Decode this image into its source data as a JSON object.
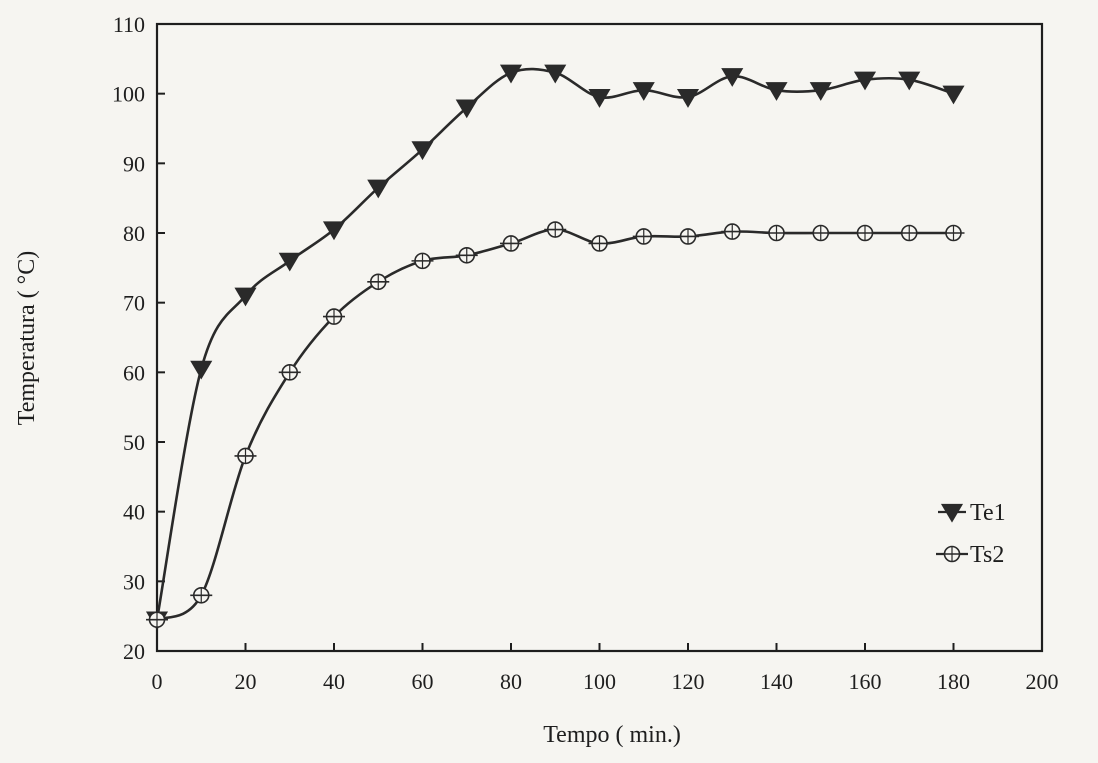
{
  "chart_data": {
    "type": "line",
    "title": "",
    "xlabel": "Tempo ( min.)",
    "ylabel": "Temperatura ( °C)",
    "xlim": [
      0,
      200
    ],
    "ylim": [
      20,
      110
    ],
    "xticks": [
      0,
      20,
      40,
      60,
      80,
      100,
      120,
      140,
      160,
      180,
      200
    ],
    "yticks": [
      20,
      30,
      40,
      50,
      60,
      70,
      80,
      90,
      100,
      110
    ],
    "grid": false,
    "legend_position": "bottom-right",
    "series": [
      {
        "name": "Te1",
        "marker": "triangle-down-filled",
        "color": "#2a2a2a",
        "x": [
          0,
          10,
          20,
          30,
          40,
          50,
          60,
          70,
          80,
          90,
          100,
          110,
          120,
          130,
          140,
          150,
          160,
          170,
          180
        ],
        "y": [
          24.5,
          60.5,
          71,
          76,
          80.5,
          86.5,
          92,
          98,
          103,
          103,
          99.5,
          100.5,
          99.5,
          102.5,
          100.5,
          100.5,
          102,
          102,
          100
        ]
      },
      {
        "name": "Ts2",
        "marker": "circle-crosshair-open",
        "color": "#2a2a2a",
        "x": [
          0,
          10,
          20,
          30,
          40,
          50,
          60,
          70,
          80,
          90,
          100,
          110,
          120,
          130,
          140,
          150,
          160,
          170,
          180
        ],
        "y": [
          24.5,
          28,
          48,
          60,
          68,
          73,
          76,
          76.8,
          78.5,
          80.5,
          78.5,
          79.5,
          79.5,
          80.2,
          80,
          80,
          80,
          80,
          80
        ]
      }
    ]
  }
}
